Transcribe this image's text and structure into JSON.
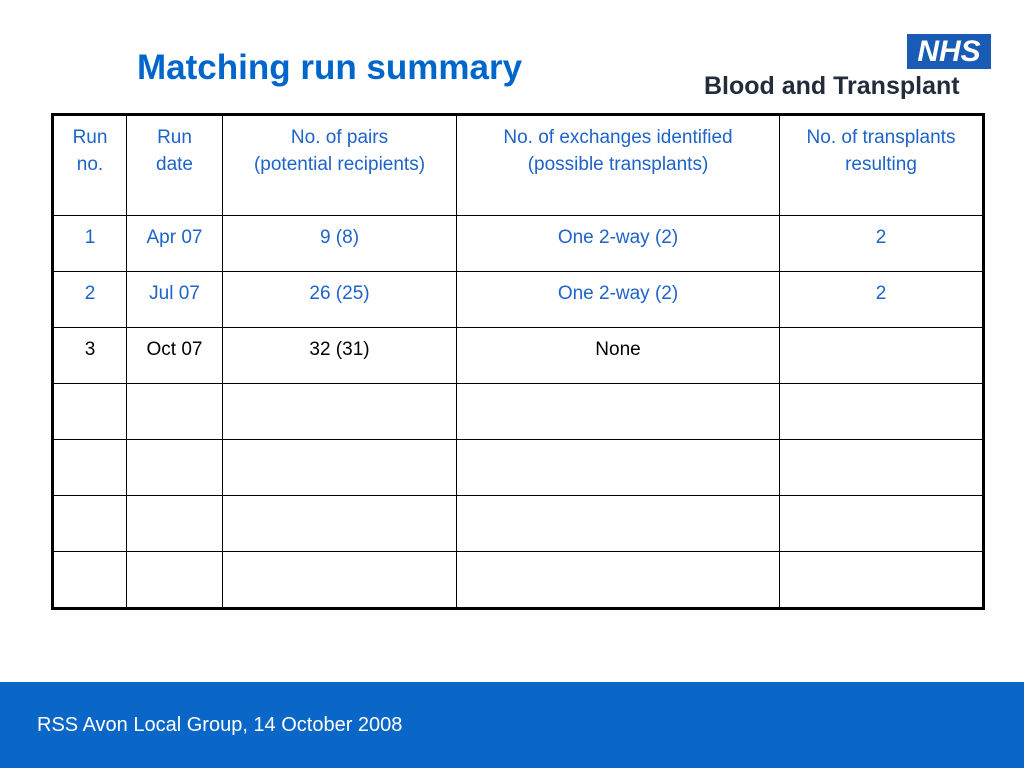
{
  "slide": {
    "title": "Matching run summary",
    "footer": "RSS Avon Local Group, 14 October 2008",
    "accent_color": "#0066cc",
    "footer_color": "#0a67c8"
  },
  "logo": {
    "badge": "NHS",
    "subtitle": "Blood and Transplant",
    "badge_color": "#1a5bb5"
  },
  "table": {
    "headers": [
      [
        "Run",
        "no."
      ],
      [
        "Run",
        "date"
      ],
      [
        "No. of pairs",
        "(potential recipients)"
      ],
      [
        "No. of exchanges identified",
        "(possible transplants)"
      ],
      [
        "No. of transplants",
        "resulting"
      ]
    ],
    "rows": [
      [
        "1",
        "Apr 07",
        "9 (8)",
        "One 2-way (2)",
        "2"
      ],
      [
        "2",
        "Jul 07",
        "26 (25)",
        "One 2-way (2)",
        "2"
      ],
      [
        "3",
        "Oct 07",
        "32 (31)",
        "None",
        ""
      ],
      [
        "",
        "",
        "",
        "",
        ""
      ],
      [
        "",
        "",
        "",
        "",
        ""
      ],
      [
        "",
        "",
        "",
        "",
        ""
      ],
      [
        "",
        "",
        "",
        "",
        ""
      ]
    ]
  }
}
